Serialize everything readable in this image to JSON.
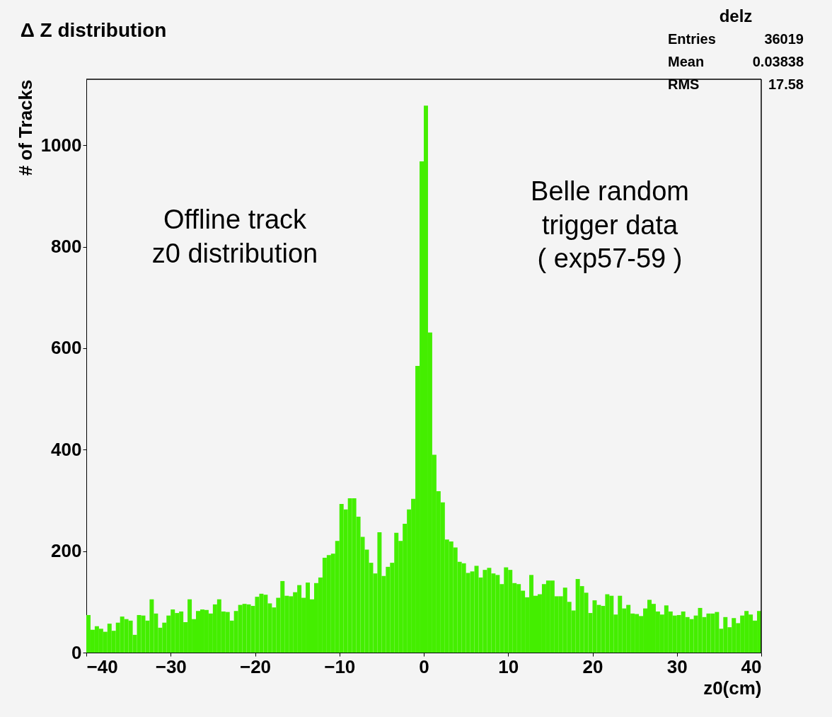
{
  "chart_data": {
    "type": "histogram",
    "title": "Δ Z distribution",
    "xlabel": "z0(cm)",
    "ylabel": "# of Tracks",
    "color": "#44ee00",
    "bins": [
      -40,
      -39.5,
      -39,
      -38.5,
      -38,
      -37.5,
      -37,
      -36.5,
      -36,
      -35.5,
      -35,
      -34.5,
      -34,
      -33.5,
      -33,
      -32.5,
      -32,
      -31.5,
      -31,
      -30.5,
      -30,
      -29.5,
      -29,
      -28.5,
      -28,
      -27.5,
      -27,
      -26.5,
      -26,
      -25.5,
      -25,
      -24.5,
      -24,
      -23.5,
      -23,
      -22.5,
      -22,
      -21.5,
      -21,
      -20.5,
      -20,
      -19.5,
      -19,
      -18.5,
      -18,
      -17.5,
      -17,
      -16.5,
      -16,
      -15.5,
      -15,
      -14.5,
      -14,
      -13.5,
      -13,
      -12.5,
      -12,
      -11.5,
      -11,
      -10.5,
      -10,
      -9.5,
      -9,
      -8.5,
      -8,
      -7.5,
      -7,
      -6.5,
      -6,
      -5.5,
      -5,
      -4.5,
      -4,
      -3.5,
      -3,
      -2.5,
      -2,
      -1.5,
      -1,
      -0.5,
      0,
      0.5,
      1,
      1.5,
      2,
      2.5,
      3,
      3.5,
      4,
      4.5,
      5,
      5.5,
      6,
      6.5,
      7,
      7.5,
      8,
      8.5,
      9,
      9.5,
      10,
      10.5,
      11,
      11.5,
      12,
      12.5,
      13,
      13.5,
      14,
      14.5,
      15,
      15.5,
      16,
      16.5,
      17,
      17.5,
      18,
      18.5,
      19,
      19.5,
      20,
      20.5,
      21,
      21.5,
      22,
      22.5,
      23,
      23.5,
      24,
      24.5,
      25,
      25.5,
      26,
      26.5,
      27,
      27.5,
      28,
      28.5,
      29,
      29.5,
      30,
      30.5,
      31,
      31.5,
      32,
      32.5,
      33,
      33.5,
      34,
      34.5,
      35,
      35.5,
      36,
      36.5,
      37,
      37.5,
      38,
      38.5,
      39,
      39.5,
      40
    ],
    "values": [
      74,
      45,
      52,
      47,
      41,
      57,
      43,
      59,
      71,
      66,
      63,
      35,
      74,
      73,
      63,
      105,
      77,
      49,
      59,
      73,
      85,
      78,
      81,
      60,
      105,
      66,
      82,
      85,
      84,
      77,
      95,
      105,
      81,
      80,
      63,
      82,
      94,
      96,
      95,
      92,
      110,
      116,
      114,
      97,
      89,
      108,
      141,
      112,
      111,
      119,
      133,
      108,
      138,
      105,
      137,
      148,
      187,
      192,
      195,
      220,
      293,
      282,
      304,
      304,
      268,
      228,
      203,
      177,
      156,
      237,
      151,
      169,
      177,
      236,
      220,
      254,
      282,
      303,
      565,
      968,
      1078,
      631,
      390,
      318,
      296,
      223,
      219,
      207,
      179,
      176,
      157,
      160,
      171,
      148,
      163,
      167,
      156,
      153,
      135,
      168,
      163,
      137,
      135,
      122,
      109,
      153,
      112,
      115,
      135,
      142,
      142,
      111,
      111,
      128,
      100,
      83,
      145,
      131,
      118,
      78,
      103,
      94,
      92,
      115,
      112,
      75,
      112,
      87,
      94,
      77,
      76,
      72,
      87,
      104,
      96,
      81,
      75,
      93,
      81,
      73,
      74,
      81,
      70,
      66,
      73,
      88,
      70,
      77,
      77,
      80,
      47,
      70,
      50,
      68,
      58,
      73,
      82,
      75,
      63,
      82
    ],
    "xlim": [
      -40,
      40
    ],
    "xticks": [
      -40,
      -30,
      -20,
      -10,
      0,
      10,
      20,
      30,
      40
    ],
    "ylim": [
      0,
      1130
    ],
    "yticks": [
      0,
      200,
      400,
      600,
      800,
      1000
    ],
    "grid": false,
    "annotations": [
      "Offline track\nz0 distribution",
      "Belle random\ntrigger data\n( exp57-59 )",
      "delz",
      "Entries 36019",
      "Mean 0.03838",
      "RMS 17.58"
    ]
  }
}
